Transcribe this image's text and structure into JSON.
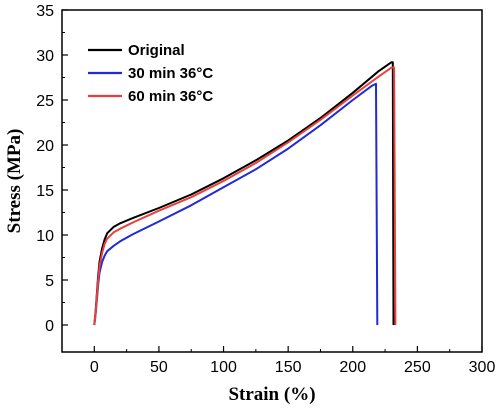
{
  "chart_data": {
    "type": "line",
    "xlabel": "Strain (%)",
    "ylabel": "Stress (MPa)",
    "xlim": [
      -25,
      300
    ],
    "ylim": [
      -3,
      35
    ],
    "xticks": [
      "0",
      "50",
      "100",
      "150",
      "200",
      "250",
      "300"
    ],
    "yticks": [
      "0",
      "5",
      "10",
      "15",
      "20",
      "25",
      "30",
      "35"
    ],
    "legend_position": "top-left",
    "series": [
      {
        "name": "Original",
        "color": "#000000",
        "points": [
          [
            0,
            0
          ],
          [
            1,
            1.5
          ],
          [
            2,
            3.5
          ],
          [
            3,
            5.5
          ],
          [
            4,
            7
          ],
          [
            6,
            8.5
          ],
          [
            8,
            9.5
          ],
          [
            10,
            10.2
          ],
          [
            15,
            10.9
          ],
          [
            20,
            11.3
          ],
          [
            30,
            11.9
          ],
          [
            50,
            13
          ],
          [
            75,
            14.5
          ],
          [
            100,
            16.3
          ],
          [
            125,
            18.3
          ],
          [
            150,
            20.5
          ],
          [
            175,
            23
          ],
          [
            200,
            25.8
          ],
          [
            220,
            28.2
          ],
          [
            230,
            29.2
          ],
          [
            231,
            29.2
          ],
          [
            231.5,
            0
          ]
        ]
      },
      {
        "name": "30 min 36°C",
        "color": "#1f2bd6",
        "points": [
          [
            0,
            0
          ],
          [
            1,
            1.2
          ],
          [
            2,
            2.8
          ],
          [
            3,
            4.5
          ],
          [
            4,
            5.8
          ],
          [
            6,
            7
          ],
          [
            8,
            7.7
          ],
          [
            10,
            8.2
          ],
          [
            15,
            8.8
          ],
          [
            20,
            9.3
          ],
          [
            30,
            10.1
          ],
          [
            50,
            11.5
          ],
          [
            75,
            13.3
          ],
          [
            100,
            15.3
          ],
          [
            125,
            17.3
          ],
          [
            150,
            19.6
          ],
          [
            175,
            22.2
          ],
          [
            200,
            25
          ],
          [
            215,
            26.6
          ],
          [
            218,
            26.8
          ],
          [
            219,
            0
          ]
        ]
      },
      {
        "name": "60 min 36°C",
        "color": "#e8403a",
        "points": [
          [
            0,
            0
          ],
          [
            1,
            1.3
          ],
          [
            2,
            3.2
          ],
          [
            3,
            5
          ],
          [
            4,
            6.5
          ],
          [
            6,
            8
          ],
          [
            8,
            9
          ],
          [
            10,
            9.6
          ],
          [
            15,
            10.3
          ],
          [
            20,
            10.7
          ],
          [
            30,
            11.4
          ],
          [
            50,
            12.7
          ],
          [
            75,
            14.2
          ],
          [
            100,
            16
          ],
          [
            125,
            18
          ],
          [
            150,
            20.3
          ],
          [
            175,
            22.8
          ],
          [
            200,
            25.5
          ],
          [
            220,
            27.6
          ],
          [
            230,
            28.6
          ],
          [
            232,
            28.6
          ],
          [
            233,
            0
          ]
        ]
      }
    ]
  }
}
